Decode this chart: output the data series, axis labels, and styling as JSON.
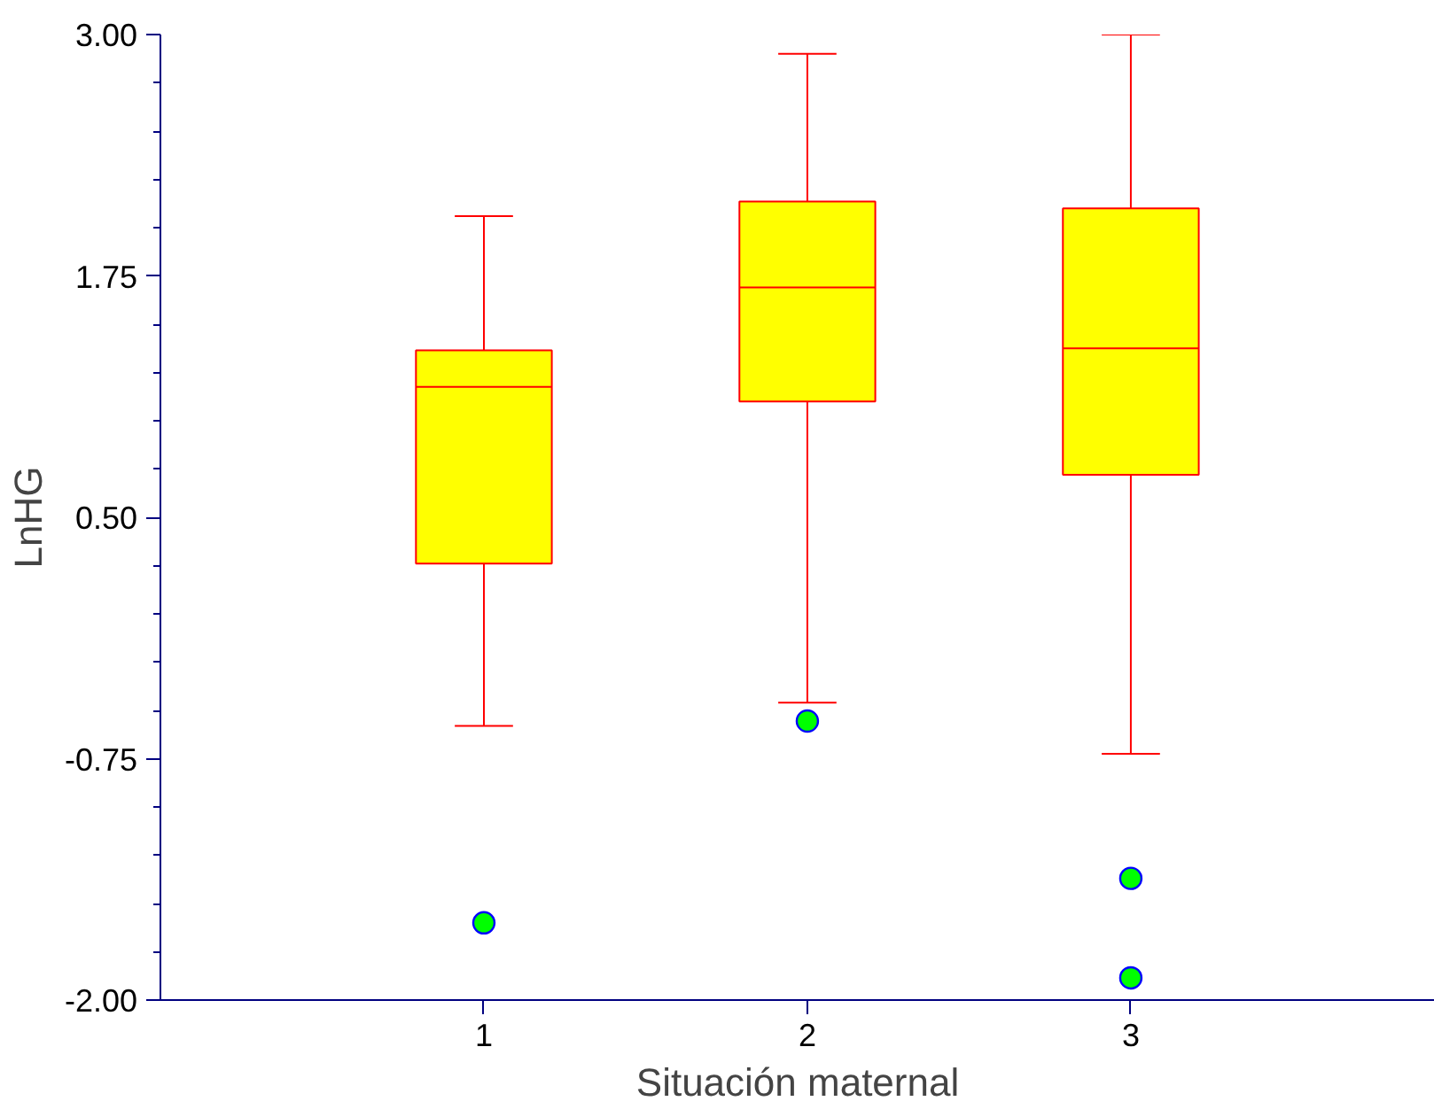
{
  "chart_data": {
    "type": "box",
    "xlabel": "Situación maternal",
    "ylabel": "LnHG",
    "categories": [
      "1",
      "2",
      "3"
    ],
    "boxes": [
      {
        "low": -0.58,
        "q1": 0.26,
        "median": 1.175,
        "q3": 1.365,
        "high": 2.06,
        "outliers": [
          -1.6
        ]
      },
      {
        "low": -0.46,
        "q1": 1.1,
        "median": 1.69,
        "q3": 2.135,
        "high": 2.9,
        "outliers": [
          -0.555
        ]
      },
      {
        "low": -0.725,
        "q1": 0.72,
        "median": 1.375,
        "q3": 2.1,
        "high": 3.0,
        "outliers": [
          -1.37,
          -1.885
        ]
      }
    ],
    "color": "#ffff00",
    "ylim": [
      -2.0,
      3.0
    ],
    "yticks": [
      {
        "value": -2,
        "label": "-2.00"
      },
      {
        "value": -0.75,
        "label": "-0.75"
      },
      {
        "value": 0.5,
        "label": "0.50"
      },
      {
        "value": 1.75,
        "label": "1.75"
      },
      {
        "value": 3,
        "label": "3.00"
      }
    ],
    "grid": false
  }
}
